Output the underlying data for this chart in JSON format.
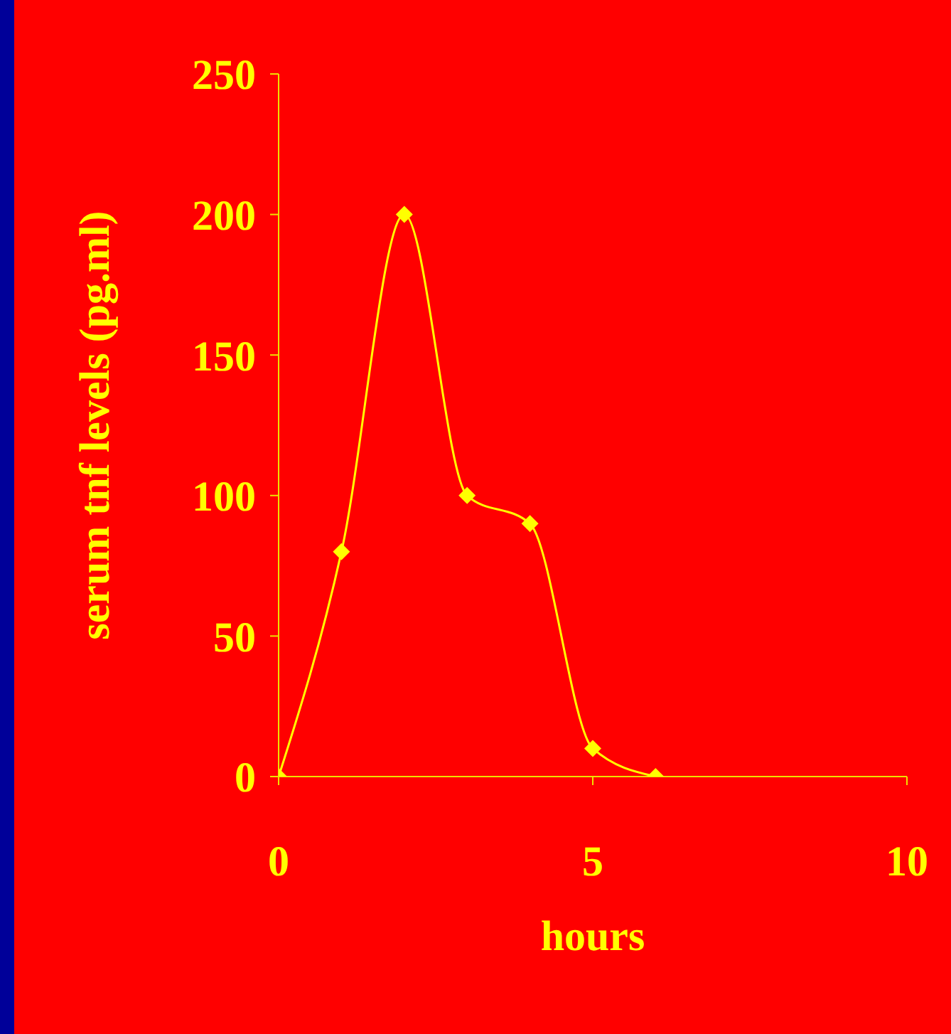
{
  "chart_data": {
    "type": "line",
    "xlabel": "hours",
    "ylabel": "serum tnf levels (pg.ml)",
    "x": [
      0,
      1,
      2,
      3,
      4,
      5,
      6
    ],
    "series": [
      {
        "color": "#ffff00",
        "values": [
          0,
          80,
          200,
          100,
          90,
          10,
          0
        ]
      }
    ],
    "xlim": [
      0,
      10
    ],
    "xticks": [
      0,
      5,
      10
    ],
    "ylim": [
      0,
      250
    ],
    "yticks": [
      0,
      50,
      100,
      150,
      200,
      250
    ],
    "marker": "diamond",
    "grid": false,
    "legend": false
  }
}
